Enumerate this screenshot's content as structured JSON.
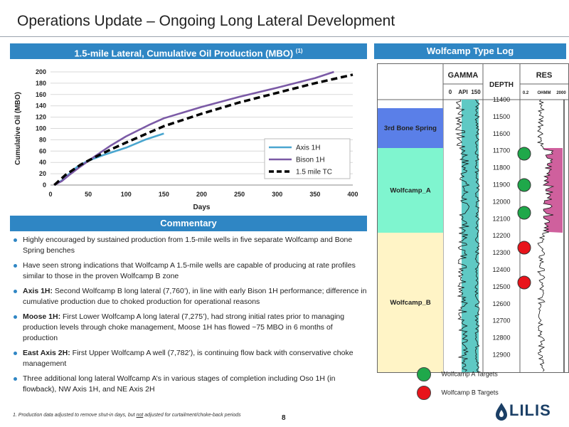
{
  "title": "Operations Update – Ongoing Long Lateral Development",
  "chart_header": {
    "text": "1.5-mile Lateral, Cumulative Oil Production (MBO)",
    "sup": "(1)"
  },
  "typelog_header": "Wolfcamp Type Log",
  "commentary_header": "Commentary",
  "commentary": [
    {
      "bold": "",
      "text": "Highly encouraged by sustained production from 1.5-mile wells in five separate Wolfcamp and Bone Spring benches"
    },
    {
      "bold": "",
      "text": "Have seen strong indications that Wolfcamp A 1.5-mile wells are capable of producing at rate profiles similar to those in the proven Wolfcamp B zone"
    },
    {
      "bold": "Axis 1H:",
      "text": " Second Wolfcamp B long lateral (7,760’), in line with early Bison 1H performance; difference in cumulative production due to choked production for operational reasons"
    },
    {
      "bold": "Moose 1H:",
      "text": " First Lower Wolfcamp A long lateral (7,275’), had strong initial rates prior to managing production levels through choke management, Moose 1H has flowed ~75 MBO in 6 months of production"
    },
    {
      "bold": "East Axis 2H:",
      "text": " First Upper Wolfcamp A well (7,782’), is continuing flow back with conservative choke management"
    },
    {
      "bold": "",
      "text": "Three additional long lateral Wolfcamp A’s in various stages of completion including Oso 1H (in flowback), NW Axis 1H, and NE Axis 2H"
    }
  ],
  "chart_data": {
    "type": "line",
    "title": "1.5-mile Lateral, Cumulative Oil Production (MBO)",
    "xlabel": "Days",
    "ylabel": "Cumulative Oil (MBO)",
    "xlim": [
      0,
      400
    ],
    "ylim": [
      0,
      200
    ],
    "xticks": [
      0,
      50,
      100,
      150,
      200,
      250,
      300,
      350,
      400
    ],
    "yticks": [
      0,
      20,
      40,
      60,
      80,
      100,
      120,
      140,
      160,
      180,
      200
    ],
    "grid": true,
    "legend_position": "bottom-right",
    "series": [
      {
        "name": "Axis 1H",
        "color": "#4aa6cf",
        "dash": false,
        "x": [
          5,
          15,
          25,
          35,
          50,
          70,
          100,
          125,
          150
        ],
        "y": [
          0,
          8,
          20,
          32,
          43,
          53,
          66,
          80,
          91
        ]
      },
      {
        "name": "Bison 1H",
        "color": "#7b5aa6",
        "dash": false,
        "x": [
          5,
          15,
          25,
          40,
          60,
          80,
          100,
          130,
          150,
          200,
          250,
          300,
          350,
          375
        ],
        "y": [
          0,
          7,
          18,
          33,
          52,
          70,
          86,
          106,
          118,
          138,
          156,
          172,
          189,
          200
        ]
      },
      {
        "name": "1.5 mile TC",
        "color": "#000000",
        "dash": true,
        "x": [
          5,
          20,
          40,
          60,
          80,
          100,
          150,
          200,
          250,
          300,
          350,
          400
        ],
        "y": [
          0,
          18,
          36,
          50,
          63,
          75,
          104,
          126,
          146,
          163,
          180,
          195
        ]
      }
    ]
  },
  "typelog": {
    "gamma_label": "GAMMA",
    "api_label": "API",
    "api_min": "0",
    "api_max": "150",
    "depth_label": "DEPTH",
    "res_label": "RES",
    "res_min": "0.2",
    "res_unit": "OHMM",
    "res_max": "2000",
    "zones": [
      {
        "name": "3rd Bone Spring",
        "color": "#5a7fe8"
      },
      {
        "name": "Wolfcamp_A",
        "color": "#7ff5cf"
      },
      {
        "name": "Wolfcamp_B",
        "color": "#fff4c6"
      }
    ],
    "depths": [
      "11400",
      "11500",
      "11600",
      "11700",
      "11800",
      "11900",
      "12000",
      "12100",
      "12200",
      "12300",
      "12400",
      "12500",
      "12600",
      "12700",
      "12800",
      "12900"
    ],
    "targets": [
      {
        "type": "A",
        "color": "#1fa84a"
      },
      {
        "type": "A",
        "color": "#1fa84a"
      },
      {
        "type": "A",
        "color": "#1fa84a"
      },
      {
        "type": "B",
        "color": "#e8141b"
      },
      {
        "type": "B",
        "color": "#e8141b"
      }
    ]
  },
  "legend_targets": [
    {
      "label": "Wolfcamp A Targets",
      "color": "#1fa84a"
    },
    {
      "label": "Wolfcamp B Targets",
      "color": "#e8141b"
    }
  ],
  "footnote": {
    "pre": "1.  Production data adjusted to remove shut-in days, but ",
    "u": "not",
    "post": " adjusted for curtailment/choke-back periods"
  },
  "page_number": "8",
  "logo_text": "LILIS",
  "colors": {
    "header_blue": "#2f86c4",
    "bullet_blue": "#2f86c4",
    "logo_navy": "#1b3f66"
  }
}
